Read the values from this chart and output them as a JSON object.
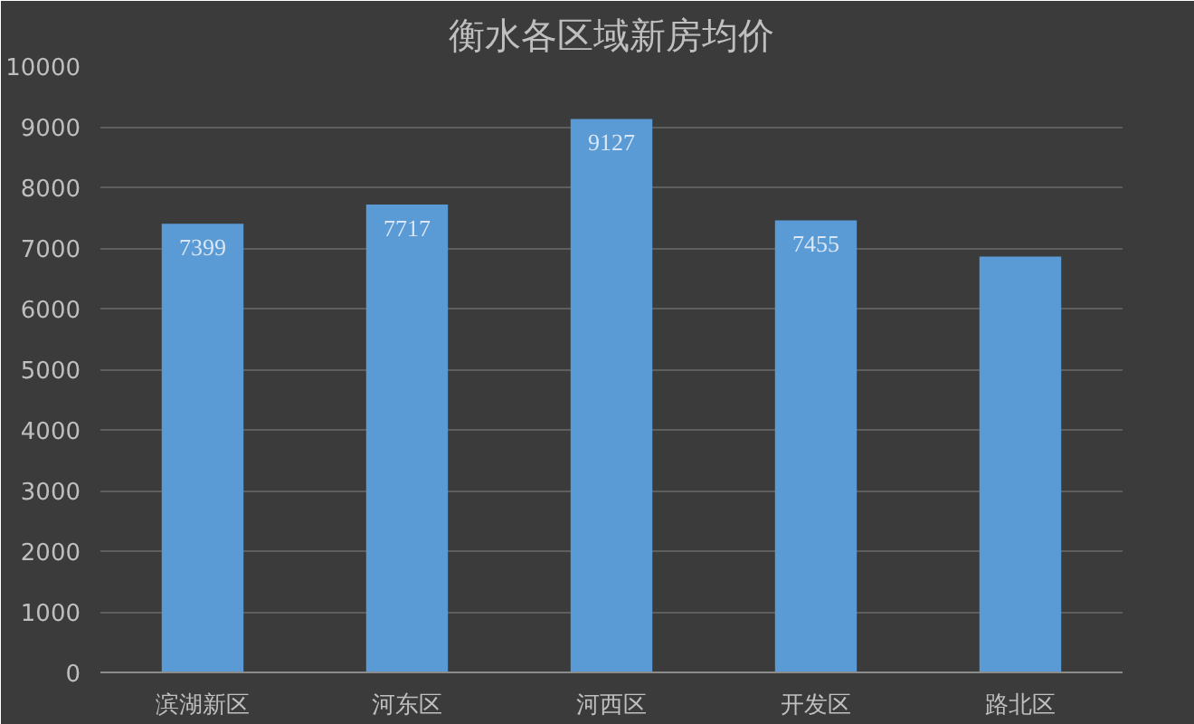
{
  "chart_data": {
    "type": "bar",
    "title": "衡水各区域新房均价",
    "categories": [
      "滨湖新区",
      "河东区",
      "河西区",
      "开发区",
      "路北区"
    ],
    "values": [
      7399,
      7717,
      9127,
      7455,
      6860
    ],
    "value_labels": [
      "7399",
      "7717",
      "9127",
      "7455",
      null
    ],
    "color": "#5b9bd5",
    "ylim": [
      0,
      10000
    ],
    "yticks": [
      0,
      1000,
      2000,
      3000,
      4000,
      5000,
      6000,
      7000,
      8000,
      9000,
      10000
    ],
    "grid": "y"
  }
}
